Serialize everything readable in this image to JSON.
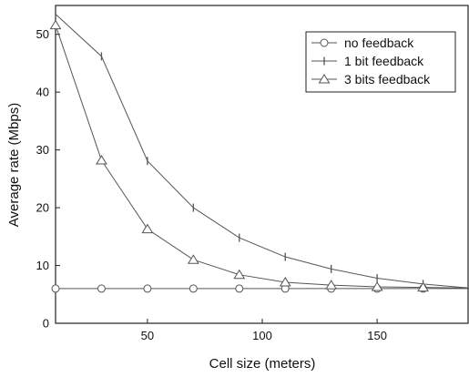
{
  "chart_data": {
    "type": "line",
    "xlabel": "Cell size (meters)",
    "ylabel": "Average rate (Mbps)",
    "xlim": [
      10,
      190
    ],
    "ylim": [
      0,
      55
    ],
    "x_ticks": [
      50,
      100,
      150
    ],
    "y_ticks": [
      0,
      10,
      20,
      30,
      40,
      50
    ],
    "legend_position": "top-right",
    "grid": false,
    "series": [
      {
        "name": "no feedback",
        "marker": "circle",
        "color": "#555555",
        "x": [
          10,
          30,
          50,
          70,
          90,
          110,
          130,
          150,
          170,
          190
        ],
        "y": [
          6.0,
          6.0,
          6.0,
          6.0,
          6.0,
          6.0,
          6.0,
          6.0,
          6.0,
          6.0
        ]
      },
      {
        "name": "1 bit feedback",
        "marker": "bar",
        "color": "#555555",
        "x": [
          10,
          30,
          50,
          70,
          90,
          110,
          130,
          150,
          170,
          190
        ],
        "y": [
          53.5,
          46.2,
          28.1,
          20.0,
          14.8,
          11.5,
          9.4,
          7.8,
          6.8,
          6.1
        ]
      },
      {
        "name": "3 bits feedback",
        "marker": "triangle",
        "color": "#555555",
        "x": [
          10,
          30,
          50,
          70,
          90,
          110,
          130,
          150,
          170,
          190
        ],
        "y": [
          51.6,
          28.2,
          16.3,
          11.0,
          8.4,
          7.1,
          6.6,
          6.3,
          6.2,
          6.1
        ]
      }
    ]
  }
}
